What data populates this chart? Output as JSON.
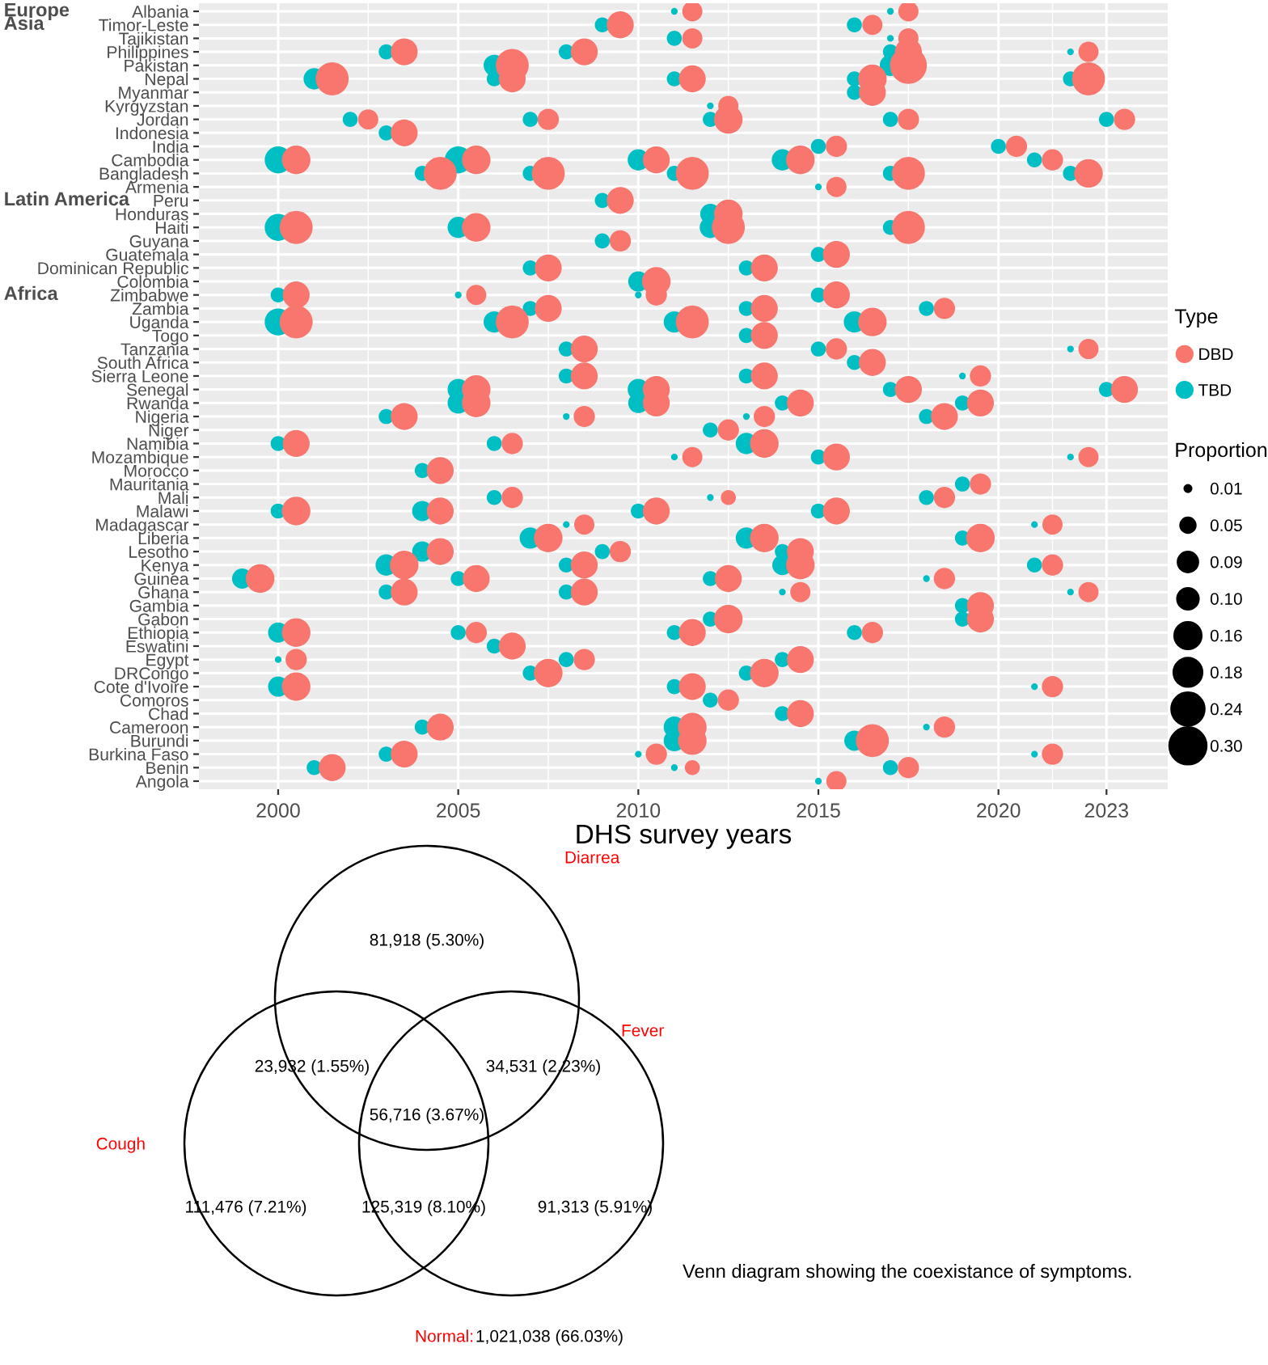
{
  "chart_data": [
    {
      "type": "bubble",
      "orientation": "horizontal",
      "xlabel": "DHS survey years",
      "xlim": [
        1997.8,
        2024.7
      ],
      "xticks": [
        2000,
        2005,
        2010,
        2015,
        2020,
        2023
      ],
      "grid": true,
      "legend": "right",
      "legend_title": [
        "Type",
        "Proportion"
      ],
      "size_legend": [
        0.01,
        0.05,
        0.09,
        {
          "value": 0.1,
          "label": "0.10"
        },
        0.16,
        0.18,
        0.24,
        {
          "value": 0.3,
          "label": "0.30"
        }
      ],
      "categories": [
        "Albania",
        "Timor-Leste",
        "Tajikistan",
        "Philippines",
        "Pakistan",
        "Nepal",
        "Myanmar",
        "Kyrgyzstan",
        "Jordan",
        "Indonesia",
        "India",
        "Cambodia",
        "Bangladesh",
        "Armenia",
        "Peru",
        "Honduras",
        "Haiti",
        "Guyana",
        "Guatemala",
        "Dominican Republic",
        "Colombia",
        "Zimbabwe",
        "Zambia",
        "Uganda",
        "Togo",
        "Tanzania",
        "South Africa",
        "Sierra Leone",
        "Senegal",
        "Rwanda",
        "Nigeria",
        "Niger",
        "Namibia",
        "Mozambique",
        "Morocco",
        "Mauritania",
        "Mali",
        "Malawi",
        "Madagascar",
        "Liberia",
        "Lesotho",
        "Kenya",
        "Guinea",
        "Ghana",
        "Gambia",
        "Gabon",
        "Ethiopia",
        "Eswatini",
        "Egypt",
        "DRCongo",
        "Cote d'Ivoire",
        "Comoros",
        "Chad",
        "Cameroon",
        "Burundi",
        "Burkina Faso",
        "Benin",
        "Angola"
      ],
      "annotations": [
        "Europe",
        "Asia",
        "Latin America",
        "Africa"
      ],
      "series": [
        {
          "name": "DBD",
          "color": "#f8766d",
          "values": [
            2011.5,
            2017.5,
            2009.5,
            2016.5,
            2011.5,
            2017.5,
            2003.5,
            2008.5,
            2017.5,
            2022.5,
            2006.5,
            2017.5,
            2001.5,
            2006.5,
            2011.5,
            2016.5,
            2022.5,
            2016.5,
            2012.5,
            2002.5,
            2007.5,
            2012.5,
            2017.5,
            2023.5,
            2003.5,
            2015.5,
            2020.5,
            2000.5,
            2005.5,
            2010.5,
            2014.5,
            2021.5,
            2004.5,
            2007.5,
            2011.5,
            2017.5,
            2022.5,
            2015.5,
            2009.5,
            2012.5,
            2000.5,
            2005.5,
            2012.5,
            2017.5,
            2009.5,
            2015.5,
            2007.5,
            2013.5,
            2010.5,
            2000.5,
            2005.5,
            2010.5,
            2015.5,
            2007.5,
            2013.5,
            2018.5,
            2000.5,
            2006.5,
            2011.5,
            2016.5,
            2013.5,
            2008.5,
            2015.5,
            2022.5,
            2016.5,
            2008.5,
            2013.5,
            2019.5,
            2005.5,
            2010.5,
            2017.5,
            2023.5,
            2005.5,
            2010.5,
            2014.5,
            2019.5,
            2003.5,
            2008.5,
            2013.5,
            2018.5,
            2012.5,
            2000.5,
            2006.5,
            2013.5,
            2011.5,
            2015.5,
            2022.5,
            2004.5,
            2019.5,
            2006.5,
            2012.5,
            2018.5,
            2000.5,
            2004.5,
            2010.5,
            2015.5,
            2008.5,
            2021.5,
            2007.5,
            2013.5,
            2019.5,
            2004.5,
            2009.5,
            2014.5,
            2003.5,
            2008.5,
            2014.5,
            2021.5,
            1999.5,
            2005.5,
            2012.5,
            2018.5,
            2003.5,
            2008.5,
            2014.5,
            2022.5,
            2019.5,
            2012.5,
            2019.5,
            2000.5,
            2005.5,
            2011.5,
            2016.5,
            2006.5,
            2000.5,
            2008.5,
            2014.5,
            2007.5,
            2013.5,
            2000.5,
            2011.5,
            2021.5,
            2012.5,
            2014.5,
            2004.5,
            2011.5,
            2018.5,
            2011.5,
            2016.5,
            2003.5,
            2010.5,
            2021.5,
            2001.5,
            2011.5,
            2017.5,
            2015.5
          ],
          "x": [
            "Albania",
            "Albania",
            "Timor-Leste",
            "Timor-Leste",
            "Tajikistan",
            "Tajikistan",
            "Philippines",
            "Philippines",
            "Philippines",
            "Philippines",
            "Pakistan",
            "Pakistan",
            "Nepal",
            "Nepal",
            "Nepal",
            "Nepal",
            "Nepal",
            "Myanmar",
            "Kyrgyzstan",
            "Jordan",
            "Jordan",
            "Jordan",
            "Jordan",
            "Jordan",
            "Indonesia",
            "India",
            "India",
            "Cambodia",
            "Cambodia",
            "Cambodia",
            "Cambodia",
            "Cambodia",
            "Bangladesh",
            "Bangladesh",
            "Bangladesh",
            "Bangladesh",
            "Bangladesh",
            "Armenia",
            "Peru",
            "Honduras",
            "Haiti",
            "Haiti",
            "Haiti",
            "Haiti",
            "Guyana",
            "Guatemala",
            "Dominican Republic",
            "Dominican Republic",
            "Colombia",
            "Zimbabwe",
            "Zimbabwe",
            "Zimbabwe",
            "Zimbabwe",
            "Zambia",
            "Zambia",
            "Zambia",
            "Uganda",
            "Uganda",
            "Uganda",
            "Uganda",
            "Togo",
            "Tanzania",
            "Tanzania",
            "Tanzania",
            "South Africa",
            "Sierra Leone",
            "Sierra Leone",
            "Sierra Leone",
            "Senegal",
            "Senegal",
            "Senegal",
            "Senegal",
            "Rwanda",
            "Rwanda",
            "Rwanda",
            "Rwanda",
            "Nigeria",
            "Nigeria",
            "Nigeria",
            "Nigeria",
            "Niger",
            "Namibia",
            "Namibia",
            "Namibia",
            "Mozambique",
            "Mozambique",
            "Mozambique",
            "Morocco",
            "Mauritania",
            "Mali",
            "Mali",
            "Mali",
            "Malawi",
            "Malawi",
            "Malawi",
            "Malawi",
            "Madagascar",
            "Madagascar",
            "Liberia",
            "Liberia",
            "Liberia",
            "Lesotho",
            "Lesotho",
            "Lesotho",
            "Kenya",
            "Kenya",
            "Kenya",
            "Kenya",
            "Guinea",
            "Guinea",
            "Guinea",
            "Guinea",
            "Ghana",
            "Ghana",
            "Ghana",
            "Ghana",
            "Gambia",
            "Gabon",
            "Gabon",
            "Ethiopia",
            "Ethiopia",
            "Ethiopia",
            "Ethiopia",
            "Eswatini",
            "Egypt",
            "Egypt",
            "Egypt",
            "DRCongo",
            "DRCongo",
            "Cote d'Ivoire",
            "Cote d'Ivoire",
            "Cote d'Ivoire",
            "Comoros",
            "Chad",
            "Cameroon",
            "Cameroon",
            "Cameroon",
            "Burundi",
            "Burundi",
            "Burkina Faso",
            "Burkina Faso",
            "Burkina Faso",
            "Benin",
            "Benin",
            "Benin",
            "Angola"
          ],
          "sizes": [
            0.09,
            0.09,
            0.16,
            0.09,
            0.09,
            0.09,
            0.16,
            0.16,
            0.16,
            0.09,
            0.24,
            0.3,
            0.24,
            0.16,
            0.16,
            0.18,
            0.24,
            0.16,
            0.09,
            0.09,
            0.1,
            0.18,
            0.1,
            0.1,
            0.16,
            0.1,
            0.1,
            0.18,
            0.18,
            0.16,
            0.18,
            0.1,
            0.24,
            0.24,
            0.24,
            0.24,
            0.18,
            0.09,
            0.16,
            0.18,
            0.24,
            0.18,
            0.24,
            0.24,
            0.1,
            0.16,
            0.16,
            0.16,
            0.18,
            0.16,
            0.09,
            0.1,
            0.16,
            0.16,
            0.16,
            0.1,
            0.24,
            0.24,
            0.24,
            0.18,
            0.16,
            0.16,
            0.1,
            0.09,
            0.16,
            0.16,
            0.16,
            0.1,
            0.18,
            0.16,
            0.16,
            0.16,
            0.18,
            0.16,
            0.16,
            0.16,
            0.16,
            0.1,
            0.1,
            0.16,
            0.1,
            0.16,
            0.1,
            0.18,
            0.09,
            0.16,
            0.09,
            0.16,
            0.1,
            0.1,
            0.05,
            0.1,
            0.18,
            0.16,
            0.16,
            0.16,
            0.09,
            0.09,
            0.18,
            0.18,
            0.18,
            0.16,
            0.1,
            0.16,
            0.18,
            0.16,
            0.18,
            0.1,
            0.18,
            0.16,
            0.16,
            0.1,
            0.16,
            0.16,
            0.09,
            0.09,
            0.16,
            0.18,
            0.16,
            0.18,
            0.1,
            0.16,
            0.1,
            0.16,
            0.1,
            0.1,
            0.16,
            0.18,
            0.18,
            0.18,
            0.16,
            0.1,
            0.1,
            0.16,
            0.16,
            0.18,
            0.1,
            0.18,
            0.24,
            0.16,
            0.1,
            0.1,
            0.16,
            0.05,
            0.1,
            0.09
          ]
        },
        {
          "name": "TBD",
          "color": "#00bfc4",
          "values": [
            2011,
            2017,
            2009,
            2016,
            2011,
            2017,
            2003,
            2008,
            2017,
            2022,
            2006,
            2017,
            2001,
            2006,
            2011,
            2016,
            2022,
            2016,
            2012,
            2002,
            2007,
            2012,
            2017,
            2023,
            2003,
            2015,
            2020,
            2000,
            2005,
            2010,
            2014,
            2021,
            2004,
            2007,
            2011,
            2017,
            2022,
            2015,
            2009,
            2012,
            2000,
            2005,
            2012,
            2017,
            2009,
            2015,
            2007,
            2013,
            2010,
            2000,
            2005,
            2010,
            2015,
            2007,
            2013,
            2018,
            2000,
            2006,
            2011,
            2016,
            2013,
            2008,
            2015,
            2022,
            2016,
            2008,
            2013,
            2019,
            2005,
            2010,
            2017,
            2023,
            2005,
            2010,
            2014,
            2019,
            2003,
            2008,
            2013,
            2018,
            2012,
            2000,
            2006,
            2013,
            2011,
            2015,
            2022,
            2004,
            2019,
            2006,
            2012,
            2018,
            2000,
            2004,
            2010,
            2015,
            2008,
            2021,
            2007,
            2013,
            2019,
            2004,
            2009,
            2014,
            2003,
            2008,
            2014,
            2021,
            1999,
            2005,
            2012,
            2018,
            2003,
            2008,
            2014,
            2022,
            2019,
            2012,
            2019,
            2000,
            2005,
            2011,
            2016,
            2006,
            2000,
            2008,
            2014,
            2007,
            2013,
            2000,
            2011,
            2021,
            2012,
            2014,
            2004,
            2011,
            2018,
            2011,
            2016,
            2003,
            2010,
            2021,
            2001,
            2011,
            2017,
            2015
          ],
          "x": [
            "Albania",
            "Albania",
            "Timor-Leste",
            "Timor-Leste",
            "Tajikistan",
            "Tajikistan",
            "Philippines",
            "Philippines",
            "Philippines",
            "Philippines",
            "Pakistan",
            "Pakistan",
            "Nepal",
            "Nepal",
            "Nepal",
            "Nepal",
            "Nepal",
            "Myanmar",
            "Kyrgyzstan",
            "Jordan",
            "Jordan",
            "Jordan",
            "Jordan",
            "Jordan",
            "Indonesia",
            "India",
            "India",
            "Cambodia",
            "Cambodia",
            "Cambodia",
            "Cambodia",
            "Cambodia",
            "Bangladesh",
            "Bangladesh",
            "Bangladesh",
            "Bangladesh",
            "Bangladesh",
            "Armenia",
            "Peru",
            "Honduras",
            "Haiti",
            "Haiti",
            "Haiti",
            "Haiti",
            "Guyana",
            "Guatemala",
            "Dominican Republic",
            "Dominican Republic",
            "Colombia",
            "Zimbabwe",
            "Zimbabwe",
            "Zimbabwe",
            "Zimbabwe",
            "Zambia",
            "Zambia",
            "Zambia",
            "Uganda",
            "Uganda",
            "Uganda",
            "Uganda",
            "Togo",
            "Tanzania",
            "Tanzania",
            "Tanzania",
            "South Africa",
            "Sierra Leone",
            "Sierra Leone",
            "Sierra Leone",
            "Senegal",
            "Senegal",
            "Senegal",
            "Senegal",
            "Rwanda",
            "Rwanda",
            "Rwanda",
            "Rwanda",
            "Nigeria",
            "Nigeria",
            "Nigeria",
            "Nigeria",
            "Niger",
            "Namibia",
            "Namibia",
            "Namibia",
            "Mozambique",
            "Mozambique",
            "Mozambique",
            "Morocco",
            "Mauritania",
            "Mali",
            "Mali",
            "Mali",
            "Malawi",
            "Malawi",
            "Malawi",
            "Malawi",
            "Madagascar",
            "Madagascar",
            "Liberia",
            "Liberia",
            "Liberia",
            "Lesotho",
            "Lesotho",
            "Lesotho",
            "Kenya",
            "Kenya",
            "Kenya",
            "Kenya",
            "Guinea",
            "Guinea",
            "Guinea",
            "Guinea",
            "Ghana",
            "Ghana",
            "Ghana",
            "Ghana",
            "Gambia",
            "Gabon",
            "Gabon",
            "Ethiopia",
            "Ethiopia",
            "Ethiopia",
            "Ethiopia",
            "Eswatini",
            "Egypt",
            "Egypt",
            "Egypt",
            "DRCongo",
            "DRCongo",
            "Cote d'Ivoire",
            "Cote d'Ivoire",
            "Cote d'Ivoire",
            "Comoros",
            "Chad",
            "Cameroon",
            "Cameroon",
            "Cameroon",
            "Burundi",
            "Burundi",
            "Burkina Faso",
            "Burkina Faso",
            "Burkina Faso",
            "Benin",
            "Benin",
            "Benin",
            "Angola"
          ],
          "sizes": [
            0.01,
            0.01,
            0.05,
            0.05,
            0.05,
            0.01,
            0.05,
            0.05,
            0.05,
            0.01,
            0.1,
            0.1,
            0.1,
            0.05,
            0.05,
            0.05,
            0.05,
            0.05,
            0.01,
            0.05,
            0.05,
            0.05,
            0.05,
            0.05,
            0.05,
            0.05,
            0.05,
            0.16,
            0.16,
            0.1,
            0.1,
            0.05,
            0.05,
            0.05,
            0.05,
            0.05,
            0.05,
            0.01,
            0.05,
            0.09,
            0.16,
            0.1,
            0.1,
            0.05,
            0.05,
            0.05,
            0.05,
            0.05,
            0.09,
            0.05,
            0.01,
            0.01,
            0.05,
            0.05,
            0.05,
            0.05,
            0.16,
            0.1,
            0.1,
            0.1,
            0.05,
            0.05,
            0.05,
            0.01,
            0.05,
            0.05,
            0.05,
            0.01,
            0.1,
            0.1,
            0.05,
            0.05,
            0.1,
            0.09,
            0.05,
            0.05,
            0.05,
            0.01,
            0.01,
            0.05,
            0.05,
            0.05,
            0.05,
            0.1,
            0.01,
            0.05,
            0.01,
            0.05,
            0.05,
            0.05,
            0.01,
            0.05,
            0.05,
            0.09,
            0.05,
            0.05,
            0.01,
            0.01,
            0.1,
            0.1,
            0.05,
            0.09,
            0.05,
            0.05,
            0.1,
            0.05,
            0.09,
            0.05,
            0.09,
            0.05,
            0.05,
            0.01,
            0.05,
            0.05,
            0.01,
            0.01,
            0.05,
            0.05,
            0.05,
            0.09,
            0.05,
            0.05,
            0.05,
            0.05,
            0.01,
            0.05,
            0.05,
            0.05,
            0.05,
            0.09,
            0.05,
            0.01,
            0.05,
            0.05,
            0.05,
            0.1,
            0.01,
            0.1,
            0.09,
            0.05,
            0.01,
            0.01,
            0.05,
            0.01,
            0.05,
            0.01
          ]
        }
      ]
    },
    {
      "type": "other",
      "categories": [
        "Diarrea",
        "Cough",
        "Fever"
      ],
      "annotations": [
        "81,918 (5.30%)",
        "23,932 (1.55%)",
        "34,531 (2.23%)",
        "56,716 (3.67%)",
        "111,476 (7.21%)",
        "125,319 (8.10%)",
        "91,313 (5.91%)",
        "Normal:",
        "1,021,038 (66.03%)",
        "Venn diagram showing the coexistance of symptoms."
      ]
    }
  ]
}
